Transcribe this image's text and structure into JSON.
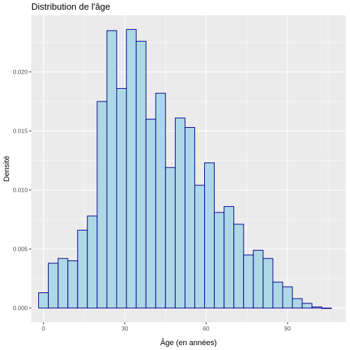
{
  "chart_data": {
    "type": "bar",
    "title": "Distribution de l'âge",
    "xlabel": "Âge (en années)",
    "ylabel": "Densité",
    "x_ticks": [
      0,
      30,
      60,
      90
    ],
    "y_ticks": [
      0.0,
      0.005,
      0.01,
      0.015,
      0.02
    ],
    "y_tick_labels": [
      "0.000",
      "0.005",
      "0.010",
      "0.015",
      "0.020"
    ],
    "xlim": [
      -4.5,
      111.5
    ],
    "ylim": [
      -0.0012,
      0.0248
    ],
    "bin_width": 3.6,
    "bin_centers": [
      0.0,
      3.6,
      7.2,
      10.8,
      14.4,
      18.0,
      21.6,
      25.2,
      28.8,
      32.4,
      36.0,
      39.6,
      43.2,
      46.8,
      50.4,
      54.0,
      57.6,
      61.2,
      64.8,
      68.4,
      72.0,
      75.6,
      79.2,
      82.8,
      86.4,
      90.0,
      93.6,
      97.2,
      100.8,
      104.4
    ],
    "values": [
      0.0013,
      0.0038,
      0.0042,
      0.004,
      0.0066,
      0.0078,
      0.0175,
      0.0235,
      0.0186,
      0.0236,
      0.0226,
      0.016,
      0.0182,
      0.0119,
      0.0161,
      0.0153,
      0.0104,
      0.0123,
      0.0081,
      0.0086,
      0.0071,
      0.0045,
      0.0049,
      0.0042,
      0.0022,
      0.0018,
      0.0008,
      0.0004,
      0.0001,
      0.0
    ],
    "grid": true,
    "colors": {
      "bar_fill": "#add8e6",
      "bar_stroke": "#00008b",
      "panel_bg": "#ebebeb",
      "grid": "#ffffff"
    }
  }
}
